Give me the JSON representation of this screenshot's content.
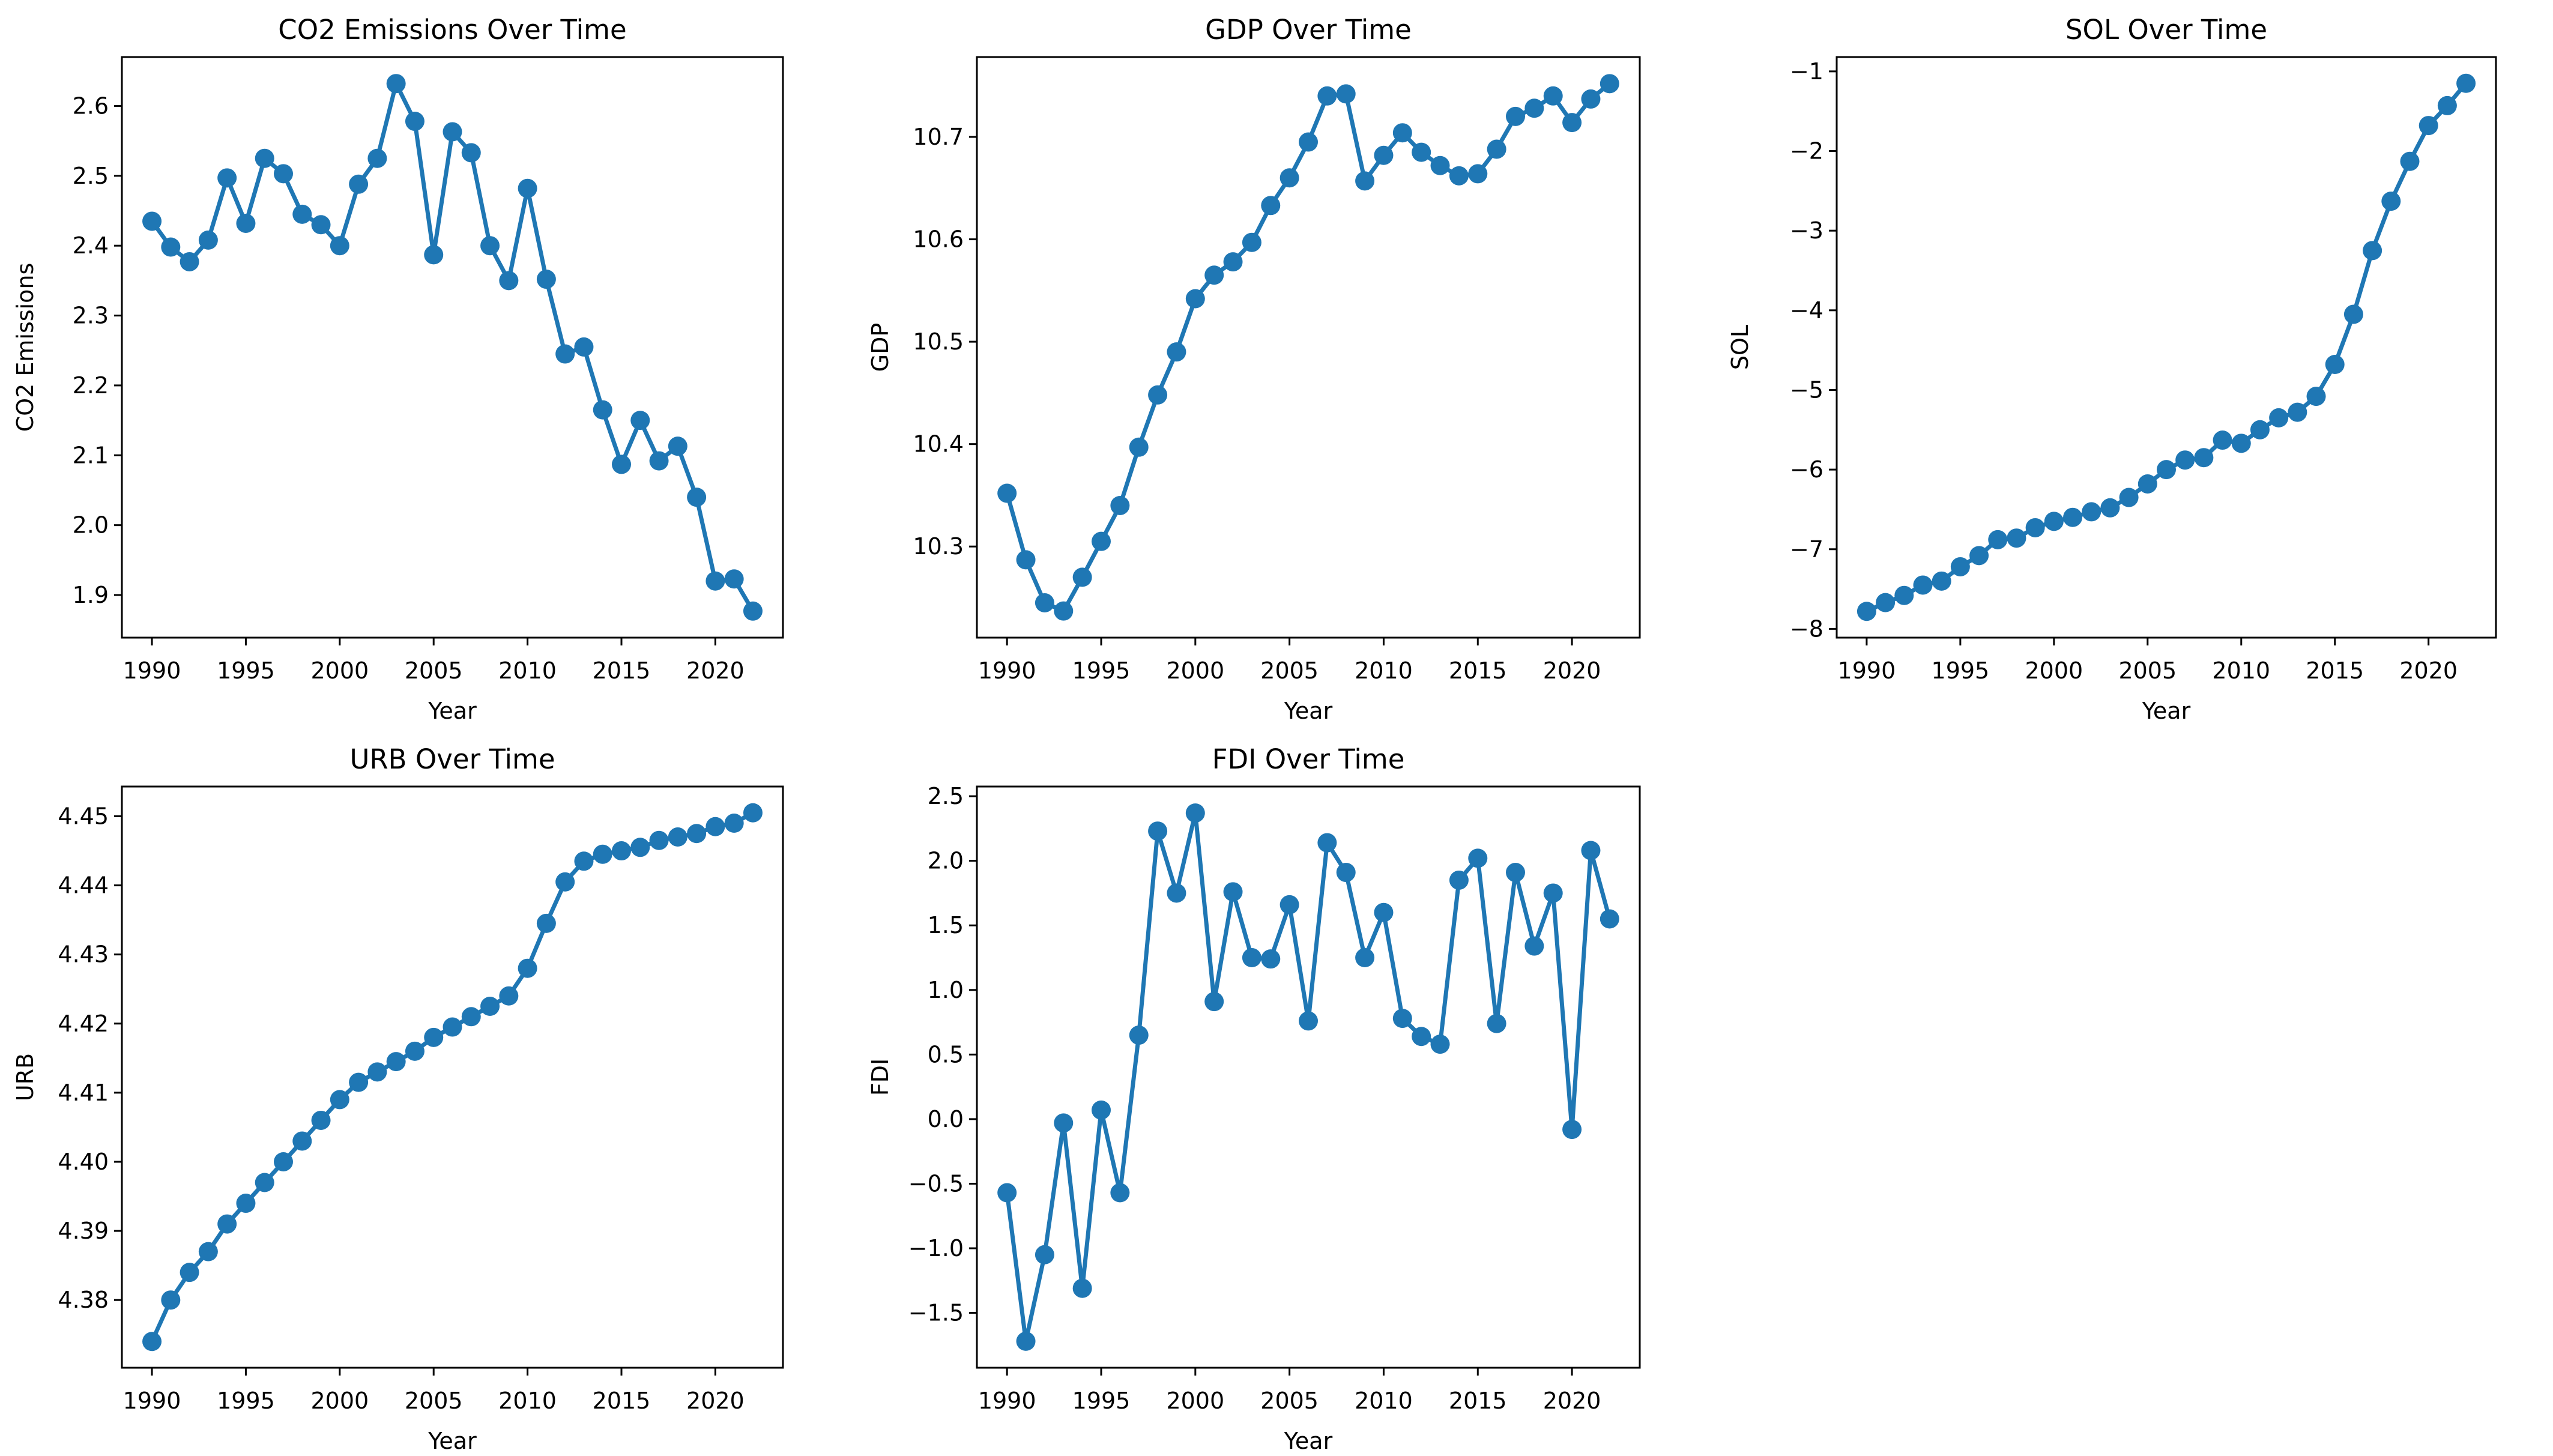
{
  "figure": {
    "background": "#ffffff",
    "accent_color": "#1f77b4",
    "text_color": "#000000",
    "x_axis_label": "Year",
    "x_tick_labels": [
      "1990",
      "1995",
      "2000",
      "2005",
      "2010",
      "2015",
      "2020"
    ]
  },
  "chart_data": [
    {
      "id": "co2",
      "type": "line",
      "title": "CO2 Emissions Over Time",
      "xlabel": "Year",
      "ylabel": "CO2 Emissions",
      "grid": false,
      "legend": "none",
      "marker": "o",
      "line_color": "#1f77b4",
      "x": [
        1990,
        1991,
        1992,
        1993,
        1994,
        1995,
        1996,
        1997,
        1998,
        1999,
        2000,
        2001,
        2002,
        2003,
        2004,
        2005,
        2006,
        2007,
        2008,
        2009,
        2010,
        2011,
        2012,
        2013,
        2014,
        2015,
        2016,
        2017,
        2018,
        2019,
        2020,
        2021,
        2022
      ],
      "values": [
        2.435,
        2.398,
        2.377,
        2.408,
        2.497,
        2.432,
        2.525,
        2.503,
        2.445,
        2.43,
        2.4,
        2.488,
        2.525,
        2.632,
        2.578,
        2.387,
        2.563,
        2.533,
        2.4,
        2.35,
        2.482,
        2.352,
        2.245,
        2.255,
        2.165,
        2.087,
        2.15,
        2.092,
        2.113,
        2.04,
        1.92,
        1.923,
        1.877
      ],
      "xlim": [
        1988.4,
        2023.6
      ],
      "ylim": [
        1.839,
        2.67
      ],
      "xticks": [
        1990,
        1995,
        2000,
        2005,
        2010,
        2015,
        2020
      ],
      "xtick_labels": [
        "1990",
        "1995",
        "2000",
        "2005",
        "2010",
        "2015",
        "2020"
      ],
      "yticks": [
        1.9,
        2.0,
        2.1,
        2.2,
        2.3,
        2.4,
        2.5,
        2.6
      ],
      "ytick_labels": [
        "1.9",
        "2.0",
        "2.1",
        "2.2",
        "2.3",
        "2.4",
        "2.5",
        "2.6"
      ]
    },
    {
      "id": "gdp",
      "type": "line",
      "title": "GDP Over Time",
      "xlabel": "Year",
      "ylabel": "GDP",
      "grid": false,
      "legend": "none",
      "marker": "o",
      "line_color": "#1f77b4",
      "x": [
        1990,
        1991,
        1992,
        1993,
        1994,
        1995,
        1996,
        1997,
        1998,
        1999,
        2000,
        2001,
        2002,
        2003,
        2004,
        2005,
        2006,
        2007,
        2008,
        2009,
        2010,
        2011,
        2012,
        2013,
        2014,
        2015,
        2016,
        2017,
        2018,
        2019,
        2020,
        2021,
        2022
      ],
      "values": [
        10.352,
        10.287,
        10.245,
        10.237,
        10.27,
        10.305,
        10.34,
        10.397,
        10.448,
        10.49,
        10.542,
        10.565,
        10.578,
        10.597,
        10.633,
        10.66,
        10.695,
        10.74,
        10.742,
        10.657,
        10.682,
        10.704,
        10.685,
        10.672,
        10.662,
        10.664,
        10.688,
        10.72,
        10.728,
        10.74,
        10.714,
        10.737,
        10.752
      ],
      "xlim": [
        1988.4,
        2023.6
      ],
      "ylim": [
        10.211,
        10.778
      ],
      "xticks": [
        1990,
        1995,
        2000,
        2005,
        2010,
        2015,
        2020
      ],
      "xtick_labels": [
        "1990",
        "1995",
        "2000",
        "2005",
        "2010",
        "2015",
        "2020"
      ],
      "yticks": [
        10.3,
        10.4,
        10.5,
        10.6,
        10.7
      ],
      "ytick_labels": [
        "10.3",
        "10.4",
        "10.5",
        "10.6",
        "10.7"
      ]
    },
    {
      "id": "sol",
      "type": "line",
      "title": "SOL Over Time",
      "xlabel": "Year",
      "ylabel": "SOL",
      "grid": false,
      "legend": "none",
      "marker": "o",
      "line_color": "#1f77b4",
      "x": [
        1990,
        1991,
        1992,
        1993,
        1994,
        1995,
        1996,
        1997,
        1998,
        1999,
        2000,
        2001,
        2002,
        2003,
        2004,
        2005,
        2006,
        2007,
        2008,
        2009,
        2010,
        2011,
        2012,
        2013,
        2014,
        2015,
        2016,
        2017,
        2018,
        2019,
        2020,
        2021,
        2022
      ],
      "values": [
        -7.78,
        -7.67,
        -7.58,
        -7.45,
        -7.4,
        -7.22,
        -7.08,
        -6.88,
        -6.86,
        -6.73,
        -6.65,
        -6.6,
        -6.53,
        -6.48,
        -6.35,
        -6.18,
        -6.0,
        -5.88,
        -5.85,
        -5.63,
        -5.67,
        -5.5,
        -5.35,
        -5.28,
        -5.08,
        -4.68,
        -4.05,
        -3.25,
        -2.63,
        -2.13,
        -1.68,
        -1.43,
        -1.15
      ],
      "xlim": [
        1988.4,
        2023.6
      ],
      "ylim": [
        -8.11,
        -0.82
      ],
      "xticks": [
        1990,
        1995,
        2000,
        2005,
        2010,
        2015,
        2020
      ],
      "xtick_labels": [
        "1990",
        "1995",
        "2000",
        "2005",
        "2010",
        "2015",
        "2020"
      ],
      "yticks": [
        -8,
        -7,
        -6,
        -5,
        -4,
        -3,
        -2,
        -1
      ],
      "ytick_labels": [
        "−8",
        "−7",
        "−6",
        "−5",
        "−4",
        "−3",
        "−2",
        "−1"
      ]
    },
    {
      "id": "urb",
      "type": "line",
      "title": "URB Over Time",
      "xlabel": "Year",
      "ylabel": "URB",
      "grid": false,
      "legend": "none",
      "marker": "o",
      "line_color": "#1f77b4",
      "x": [
        1990,
        1991,
        1992,
        1993,
        1994,
        1995,
        1996,
        1997,
        1998,
        1999,
        2000,
        2001,
        2002,
        2003,
        2004,
        2005,
        2006,
        2007,
        2008,
        2009,
        2010,
        2011,
        2012,
        2013,
        2014,
        2015,
        2016,
        2017,
        2018,
        2019,
        2020,
        2021,
        2022
      ],
      "values": [
        4.374,
        4.38,
        4.384,
        4.387,
        4.391,
        4.394,
        4.397,
        4.4,
        4.403,
        4.406,
        4.409,
        4.4115,
        4.413,
        4.4145,
        4.416,
        4.418,
        4.4195,
        4.421,
        4.4225,
        4.424,
        4.428,
        4.4345,
        4.4405,
        4.4435,
        4.4445,
        4.445,
        4.4455,
        4.4465,
        4.447,
        4.4475,
        4.4485,
        4.449,
        4.4505
      ],
      "xlim": [
        1988.4,
        2023.6
      ],
      "ylim": [
        4.3702,
        4.4543
      ],
      "xticks": [
        1990,
        1995,
        2000,
        2005,
        2010,
        2015,
        2020
      ],
      "xtick_labels": [
        "1990",
        "1995",
        "2000",
        "2005",
        "2010",
        "2015",
        "2020"
      ],
      "yticks": [
        4.38,
        4.39,
        4.4,
        4.41,
        4.42,
        4.43,
        4.44,
        4.45
      ],
      "ytick_labels": [
        "4.38",
        "4.39",
        "4.40",
        "4.41",
        "4.42",
        "4.43",
        "4.44",
        "4.45"
      ]
    },
    {
      "id": "fdi",
      "type": "line",
      "title": "FDI Over Time",
      "xlabel": "Year",
      "ylabel": "FDI",
      "grid": false,
      "legend": "none",
      "marker": "o",
      "line_color": "#1f77b4",
      "x": [
        1990,
        1991,
        1992,
        1993,
        1994,
        1995,
        1996,
        1997,
        1998,
        1999,
        2000,
        2001,
        2002,
        2003,
        2004,
        2005,
        2006,
        2007,
        2008,
        2009,
        2010,
        2011,
        2012,
        2013,
        2014,
        2015,
        2016,
        2017,
        2018,
        2019,
        2020,
        2021,
        2022
      ],
      "values": [
        -0.57,
        -1.72,
        -1.05,
        -0.03,
        -1.31,
        0.07,
        -0.57,
        0.65,
        2.23,
        1.75,
        2.37,
        0.91,
        1.76,
        1.25,
        1.24,
        1.66,
        0.76,
        2.14,
        1.91,
        1.25,
        1.6,
        0.78,
        0.64,
        0.58,
        1.85,
        2.02,
        0.74,
        1.91,
        1.34,
        1.75,
        -0.08,
        2.08,
        1.55
      ],
      "xlim": [
        1988.4,
        2023.6
      ],
      "ylim": [
        -1.925,
        2.575
      ],
      "xticks": [
        1990,
        1995,
        2000,
        2005,
        2010,
        2015,
        2020
      ],
      "xtick_labels": [
        "1990",
        "1995",
        "2000",
        "2005",
        "2010",
        "2015",
        "2020"
      ],
      "yticks": [
        -1.5,
        -1.0,
        -0.5,
        0.0,
        0.5,
        1.0,
        1.5,
        2.0,
        2.5
      ],
      "ytick_labels": [
        "−1.5",
        "−1.0",
        "−0.5",
        "0.0",
        "0.5",
        "1.0",
        "1.5",
        "2.0",
        "2.5"
      ]
    }
  ]
}
